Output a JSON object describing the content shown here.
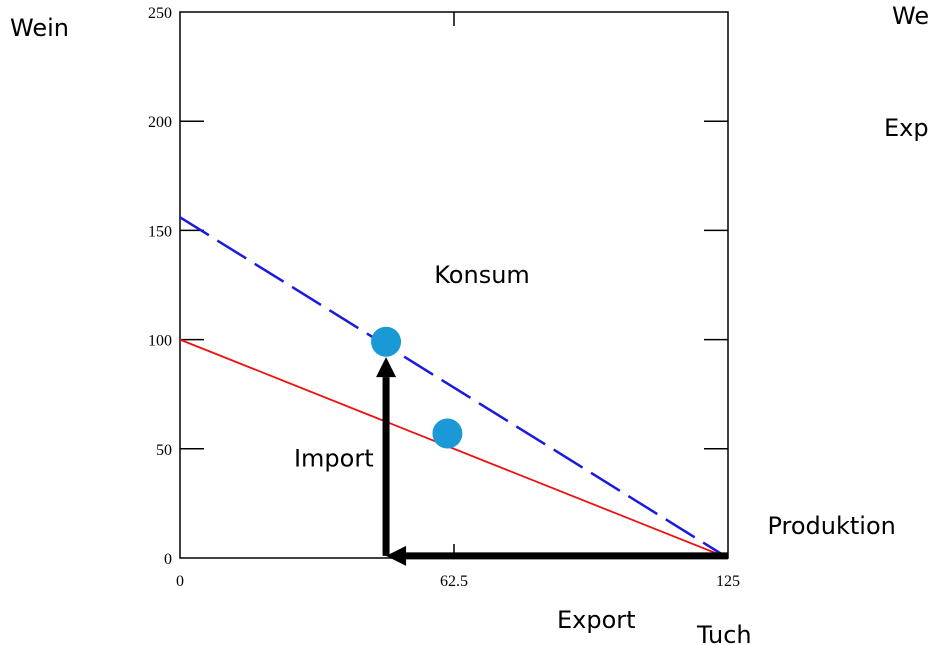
{
  "chart_data": {
    "type": "line",
    "title": "",
    "xlabel": "Tuch",
    "ylabel": "Wein",
    "xlim": [
      0,
      125
    ],
    "ylim": [
      0,
      250
    ],
    "x_ticks": [
      {
        "value": 0,
        "label": "0"
      },
      {
        "value": 62.5,
        "label": "62.5"
      },
      {
        "value": 125,
        "label": "125"
      }
    ],
    "y_ticks": [
      {
        "value": 0,
        "label": "0"
      },
      {
        "value": 50,
        "label": "50"
      },
      {
        "value": 100,
        "label": "100"
      },
      {
        "value": 150,
        "label": "150"
      },
      {
        "value": 200,
        "label": "200"
      },
      {
        "value": 250,
        "label": "250"
      }
    ],
    "grid": false,
    "series": [
      {
        "style": "solid",
        "color": "#ee1111",
        "x": [
          0,
          125
        ],
        "y": [
          100,
          0
        ]
      },
      {
        "style": "dashed",
        "color": "#1a1adf",
        "x": [
          0,
          125
        ],
        "y": [
          156,
          0
        ]
      }
    ],
    "points": [
      {
        "x": 47,
        "y": 99,
        "color": "#1b98d6"
      },
      {
        "x": 61,
        "y": 57,
        "color": "#1b98d6"
      }
    ],
    "arrows": [
      {
        "from": [
          125,
          1
        ],
        "to": [
          47,
          1
        ],
        "color": "#000000"
      },
      {
        "from": [
          47,
          1
        ],
        "to": [
          47,
          92
        ],
        "color": "#000000"
      }
    ],
    "annotations": [
      {
        "text": "Konsum",
        "x": 58,
        "y": 126
      },
      {
        "text": "Import",
        "x": 26,
        "y": 42
      },
      {
        "text": "Produktion",
        "x": 134,
        "y": 11
      },
      {
        "text": "Export",
        "x": 86,
        "y": -32
      }
    ],
    "clipped_labels": [
      "We",
      "Exp"
    ]
  }
}
